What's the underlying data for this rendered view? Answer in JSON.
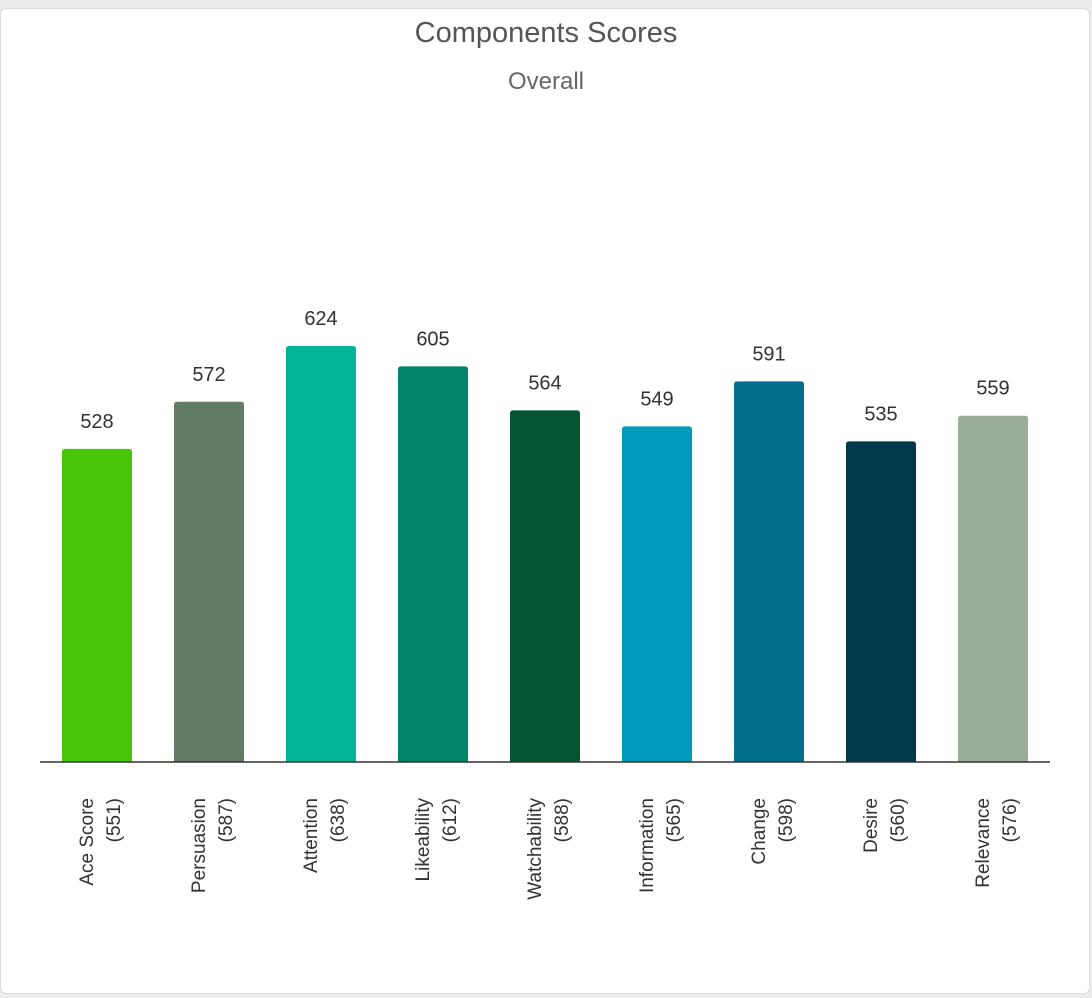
{
  "chart_data": {
    "type": "bar",
    "title": "Components Scores",
    "subtitle": "Overall",
    "categories": [
      "Ace Score",
      "Persuasion",
      "Attention",
      "Likeability",
      "Watchability",
      "Information",
      "Change",
      "Desire",
      "Relevance"
    ],
    "category_notes": [
      "(551)",
      "(587)",
      "(638)",
      "(612)",
      "(588)",
      "(565)",
      "(598)",
      "(560)",
      "(576)"
    ],
    "values": [
      528,
      572,
      624,
      605,
      564,
      549,
      591,
      535,
      559
    ],
    "colors": [
      "#48c605",
      "#627b66",
      "#02b498",
      "#01836a",
      "#035630",
      "#019cbb",
      "#016f8d",
      "#01384a",
      "#9aae9a"
    ],
    "ylim": [
      236,
      650
    ],
    "grid": false,
    "legend": "none"
  }
}
